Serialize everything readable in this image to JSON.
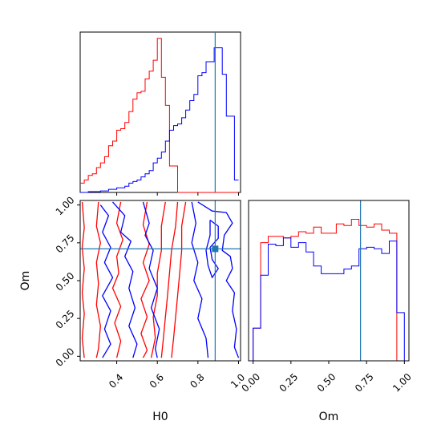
{
  "chart_data": {
    "type": "corner",
    "parameters": [
      "H0",
      "Om"
    ],
    "colors": {
      "sample_a": "#ff0000",
      "sample_b": "#0000ff",
      "truth": "#1f77b4"
    },
    "truth": {
      "H0": 0.885,
      "Om": 0.71
    },
    "panels": {
      "h0_hist": {
        "type": "histogram",
        "x_range": [
          0.22,
          1.01
        ],
        "y_range": [
          0,
          1
        ],
        "bin_edges": [
          0.22,
          0.24,
          0.26,
          0.28,
          0.3,
          0.32,
          0.34,
          0.36,
          0.38,
          0.4,
          0.42,
          0.44,
          0.46,
          0.48,
          0.5,
          0.52,
          0.54,
          0.56,
          0.58,
          0.6,
          0.62,
          0.64,
          0.66,
          0.68,
          0.7,
          0.72,
          0.74,
          0.76,
          0.78,
          0.8,
          0.82,
          0.84,
          0.86,
          0.88,
          0.9,
          0.92,
          0.94,
          0.96,
          0.98,
          1.0
        ],
        "series": [
          {
            "color": "#ff0000",
            "values": [
              0.06,
              0.08,
              0.11,
              0.12,
              0.16,
              0.19,
              0.23,
              0.3,
              0.33,
              0.4,
              0.41,
              0.45,
              0.52,
              0.6,
              0.64,
              0.65,
              0.73,
              0.78,
              0.85,
              0.99,
              0.74,
              0.56,
              0.17,
              0.17,
              0.0,
              0.0,
              0.0,
              0.0,
              0.0,
              0.0,
              0.0,
              0.0,
              0.0,
              0.0,
              0.0,
              0.0,
              0.0,
              0.0,
              0.0
            ]
          },
          {
            "color": "#0000ff",
            "values": [
              0.0,
              0.0,
              0.005,
              0.005,
              0.005,
              0.01,
              0.01,
              0.02,
              0.02,
              0.03,
              0.03,
              0.04,
              0.06,
              0.07,
              0.08,
              0.1,
              0.12,
              0.14,
              0.19,
              0.22,
              0.26,
              0.33,
              0.4,
              0.43,
              0.44,
              0.48,
              0.53,
              0.59,
              0.63,
              0.75,
              0.77,
              0.84,
              0.84,
              0.93,
              0.93,
              0.76,
              0.49,
              0.49,
              0.08
            ]
          }
        ]
      },
      "om_hist": {
        "type": "histogram",
        "x_range": [
          -0.03,
          1.03
        ],
        "y_range": [
          0,
          1
        ],
        "bin_edges": [
          0.0,
          0.05,
          0.1,
          0.15,
          0.2,
          0.25,
          0.3,
          0.35,
          0.4,
          0.45,
          0.5,
          0.55,
          0.6,
          0.65,
          0.7,
          0.75,
          0.8,
          0.85,
          0.9,
          0.95,
          1.0
        ],
        "series": [
          {
            "color": "#ff0000",
            "values": [
              0.21,
              0.76,
              0.8,
              0.8,
              0.79,
              0.8,
              0.83,
              0.82,
              0.86,
              0.82,
              0.82,
              0.88,
              0.87,
              0.91,
              0.87,
              0.86,
              0.88,
              0.84,
              0.82,
              0.0
            ]
          },
          {
            "color": "#0000ff",
            "values": [
              0.21,
              0.55,
              0.75,
              0.74,
              0.79,
              0.73,
              0.76,
              0.7,
              0.61,
              0.56,
              0.56,
              0.56,
              0.59,
              0.61,
              0.72,
              0.73,
              0.72,
              0.69,
              0.77,
              0.31
            ]
          }
        ]
      },
      "joint": {
        "type": "contour",
        "x_range": [
          0.22,
          1.01
        ],
        "y_range": [
          -0.03,
          1.03
        ],
        "contours": [
          {
            "color": "#ff0000",
            "points": [
              [
                0.23,
                1.02
              ],
              [
                0.24,
                0.85
              ],
              [
                0.23,
                0.72
              ],
              [
                0.24,
                0.58
              ],
              [
                0.23,
                0.42
              ],
              [
                0.24,
                0.28
              ],
              [
                0.23,
                0.12
              ],
              [
                0.24,
                -0.01
              ]
            ]
          },
          {
            "color": "#ff0000",
            "points": [
              [
                0.31,
                1.02
              ],
              [
                0.3,
                0.86
              ],
              [
                0.32,
                0.75
              ],
              [
                0.3,
                0.62
              ],
              [
                0.31,
                0.48
              ],
              [
                0.3,
                0.34
              ],
              [
                0.32,
                0.2
              ],
              [
                0.31,
                0.05
              ],
              [
                0.3,
                -0.01
              ]
            ]
          },
          {
            "color": "#ff0000",
            "points": [
              [
                0.42,
                1.02
              ],
              [
                0.4,
                0.88
              ],
              [
                0.43,
                0.77
              ],
              [
                0.4,
                0.66
              ],
              [
                0.41,
                0.55
              ],
              [
                0.38,
                0.45
              ],
              [
                0.42,
                0.33
              ],
              [
                0.39,
                0.22
              ],
              [
                0.42,
                0.1
              ],
              [
                0.4,
                -0.01
              ]
            ]
          },
          {
            "color": "#ff0000",
            "points": [
              [
                0.55,
                1.02
              ],
              [
                0.53,
                0.87
              ],
              [
                0.56,
                0.74
              ],
              [
                0.53,
                0.62
              ],
              [
                0.56,
                0.5
              ],
              [
                0.52,
                0.38
              ],
              [
                0.55,
                0.26
              ],
              [
                0.52,
                0.15
              ],
              [
                0.55,
                0.04
              ],
              [
                0.53,
                -0.01
              ]
            ]
          },
          {
            "color": "#ff0000",
            "points": [
              [
                0.64,
                1.02
              ],
              [
                0.62,
                0.86
              ],
              [
                0.62,
                0.7
              ],
              [
                0.6,
                0.55
              ],
              [
                0.6,
                0.4
              ],
              [
                0.58,
                0.26
              ],
              [
                0.59,
                0.12
              ],
              [
                0.57,
                -0.01
              ]
            ]
          },
          {
            "color": "#ff0000",
            "points": [
              [
                0.7,
                1.02
              ],
              [
                0.69,
                0.86
              ],
              [
                0.67,
                0.7
              ],
              [
                0.66,
                0.55
              ],
              [
                0.65,
                0.4
              ],
              [
                0.64,
                0.26
              ],
              [
                0.63,
                0.12
              ],
              [
                0.62,
                -0.01
              ]
            ]
          },
          {
            "color": "#ff0000",
            "points": [
              [
                0.74,
                1.02
              ],
              [
                0.72,
                0.86
              ],
              [
                0.72,
                0.7
              ],
              [
                0.71,
                0.55
              ],
              [
                0.7,
                0.4
              ],
              [
                0.69,
                0.26
              ],
              [
                0.68,
                0.12
              ],
              [
                0.67,
                -0.01
              ]
            ]
          },
          {
            "color": "#0000ff",
            "points": [
              [
                0.32,
                1.0
              ],
              [
                0.36,
                0.93
              ],
              [
                0.33,
                0.82
              ],
              [
                0.37,
                0.72
              ],
              [
                0.34,
                0.62
              ],
              [
                0.38,
                0.52
              ],
              [
                0.33,
                0.4
              ],
              [
                0.37,
                0.3
              ],
              [
                0.34,
                0.18
              ],
              [
                0.37,
                0.08
              ],
              [
                0.33,
                -0.01
              ]
            ]
          },
          {
            "color": "#0000ff",
            "points": [
              [
                0.38,
                1.02
              ],
              [
                0.44,
                0.93
              ],
              [
                0.42,
                0.82
              ],
              [
                0.47,
                0.76
              ],
              [
                0.44,
                0.66
              ],
              [
                0.48,
                0.56
              ],
              [
                0.46,
                0.45
              ],
              [
                0.49,
                0.32
              ],
              [
                0.46,
                0.2
              ],
              [
                0.5,
                0.08
              ],
              [
                0.48,
                -0.01
              ]
            ]
          },
          {
            "color": "#0000ff",
            "points": [
              [
                0.53,
                1.02
              ],
              [
                0.56,
                0.88
              ],
              [
                0.54,
                0.8
              ],
              [
                0.58,
                0.7
              ],
              [
                0.56,
                0.58
              ],
              [
                0.6,
                0.45
              ],
              [
                0.57,
                0.32
              ],
              [
                0.61,
                0.18
              ],
              [
                0.59,
                0.05
              ],
              [
                0.6,
                -0.01
              ]
            ]
          },
          {
            "color": "#0000ff",
            "points": [
              [
                0.77,
                1.02
              ],
              [
                0.79,
                0.88
              ],
              [
                0.77,
                0.75
              ],
              [
                0.8,
                0.62
              ],
              [
                0.78,
                0.5
              ],
              [
                0.82,
                0.38
              ],
              [
                0.8,
                0.25
              ],
              [
                0.84,
                0.12
              ],
              [
                0.85,
                -0.01
              ]
            ]
          },
          {
            "color": "#0000ff",
            "points": [
              [
                0.8,
                1.02
              ],
              [
                0.87,
                0.96
              ],
              [
                0.94,
                0.95
              ],
              [
                0.97,
                0.88
              ],
              [
                0.93,
                0.8
              ],
              [
                0.92,
                0.7
              ],
              [
                0.96,
                0.66
              ],
              [
                0.97,
                0.58
              ],
              [
                0.94,
                0.5
              ],
              [
                0.98,
                0.42
              ],
              [
                0.97,
                0.3
              ],
              [
                0.99,
                0.18
              ],
              [
                0.98,
                0.06
              ],
              [
                1.0,
                -0.01
              ]
            ]
          },
          {
            "color": "#0000ff",
            "points": [
              [
                0.86,
                0.9
              ],
              [
                0.9,
                0.86
              ],
              [
                0.9,
                0.78
              ],
              [
                0.86,
                0.72
              ],
              [
                0.87,
                0.64
              ],
              [
                0.9,
                0.58
              ],
              [
                0.87,
                0.52
              ],
              [
                0.85,
                0.6
              ],
              [
                0.84,
                0.7
              ],
              [
                0.86,
                0.8
              ],
              [
                0.86,
                0.9
              ]
            ]
          }
        ]
      }
    },
    "axes": {
      "h0_ticks": [
        0.4,
        0.6,
        0.8,
        1.0
      ],
      "h0_tick_labels": [
        "0.4",
        "0.6",
        "0.8",
        "1.0"
      ],
      "om_ticks": [
        0.0,
        0.25,
        0.5,
        0.75,
        1.0
      ],
      "om_tick_labels": [
        "0.00",
        "0.25",
        "0.50",
        "0.75",
        "1.00"
      ],
      "xlabel_left": "H0",
      "xlabel_right": "Om",
      "ylabel_joint": "Om"
    }
  }
}
